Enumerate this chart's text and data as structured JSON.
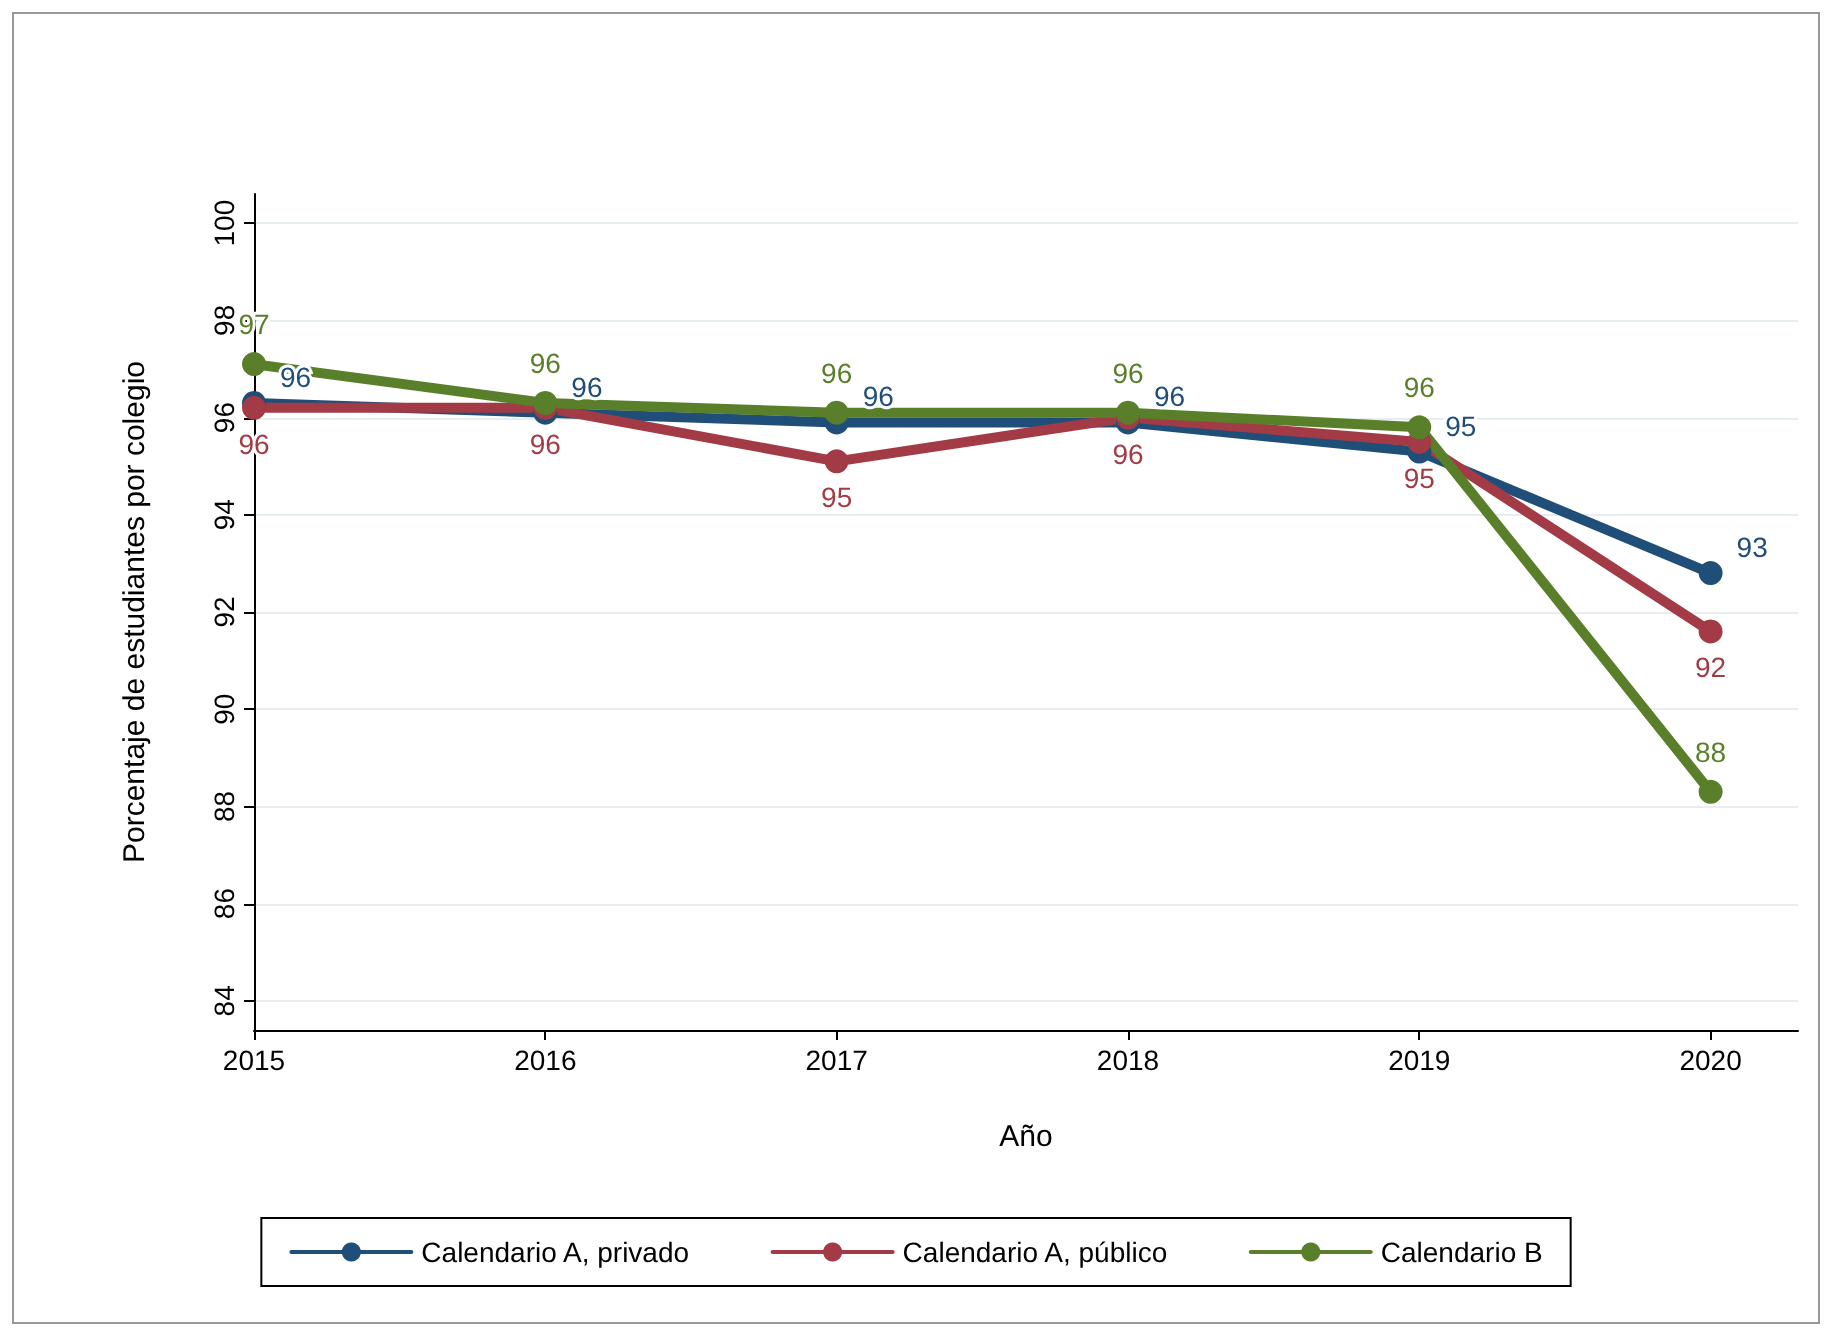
{
  "chart_data": {
    "type": "line",
    "xlabel": "Año",
    "ylabel": "Porcentaje de estudiantes por colegio",
    "x": [
      2015,
      2016,
      2017,
      2018,
      2019,
      2020
    ],
    "xlim": [
      2015,
      2020.3
    ],
    "xticks": [
      2015,
      2016,
      2017,
      2018,
      2019,
      2020
    ],
    "ylim": [
      83.4,
      100.6
    ],
    "yticks": [
      84,
      86,
      88,
      90,
      92,
      94,
      96,
      98,
      100
    ],
    "grid": "y",
    "legend": "bottom",
    "marker": "circle",
    "line_style": "solid",
    "series": [
      {
        "name": "Calendario A, privado",
        "color": "#1f4e79",
        "values": [
          96.3,
          96.1,
          95.9,
          95.9,
          95.3,
          92.8
        ],
        "value_labels": [
          "96",
          "96",
          "96",
          "96",
          "95",
          "93"
        ]
      },
      {
        "name": "Calendario A, público",
        "color": "#a23b45",
        "values": [
          96.2,
          96.2,
          95.1,
          96.0,
          95.5,
          91.6
        ],
        "value_labels": [
          "96",
          "96",
          "95",
          "96",
          "95",
          "92"
        ]
      },
      {
        "name": "Calendario B",
        "color": "#5a7f2b",
        "values": [
          97.1,
          96.3,
          96.1,
          96.1,
          95.8,
          88.3
        ],
        "value_labels": [
          "97",
          "96",
          "96",
          "96",
          "96",
          "88"
        ]
      }
    ]
  }
}
